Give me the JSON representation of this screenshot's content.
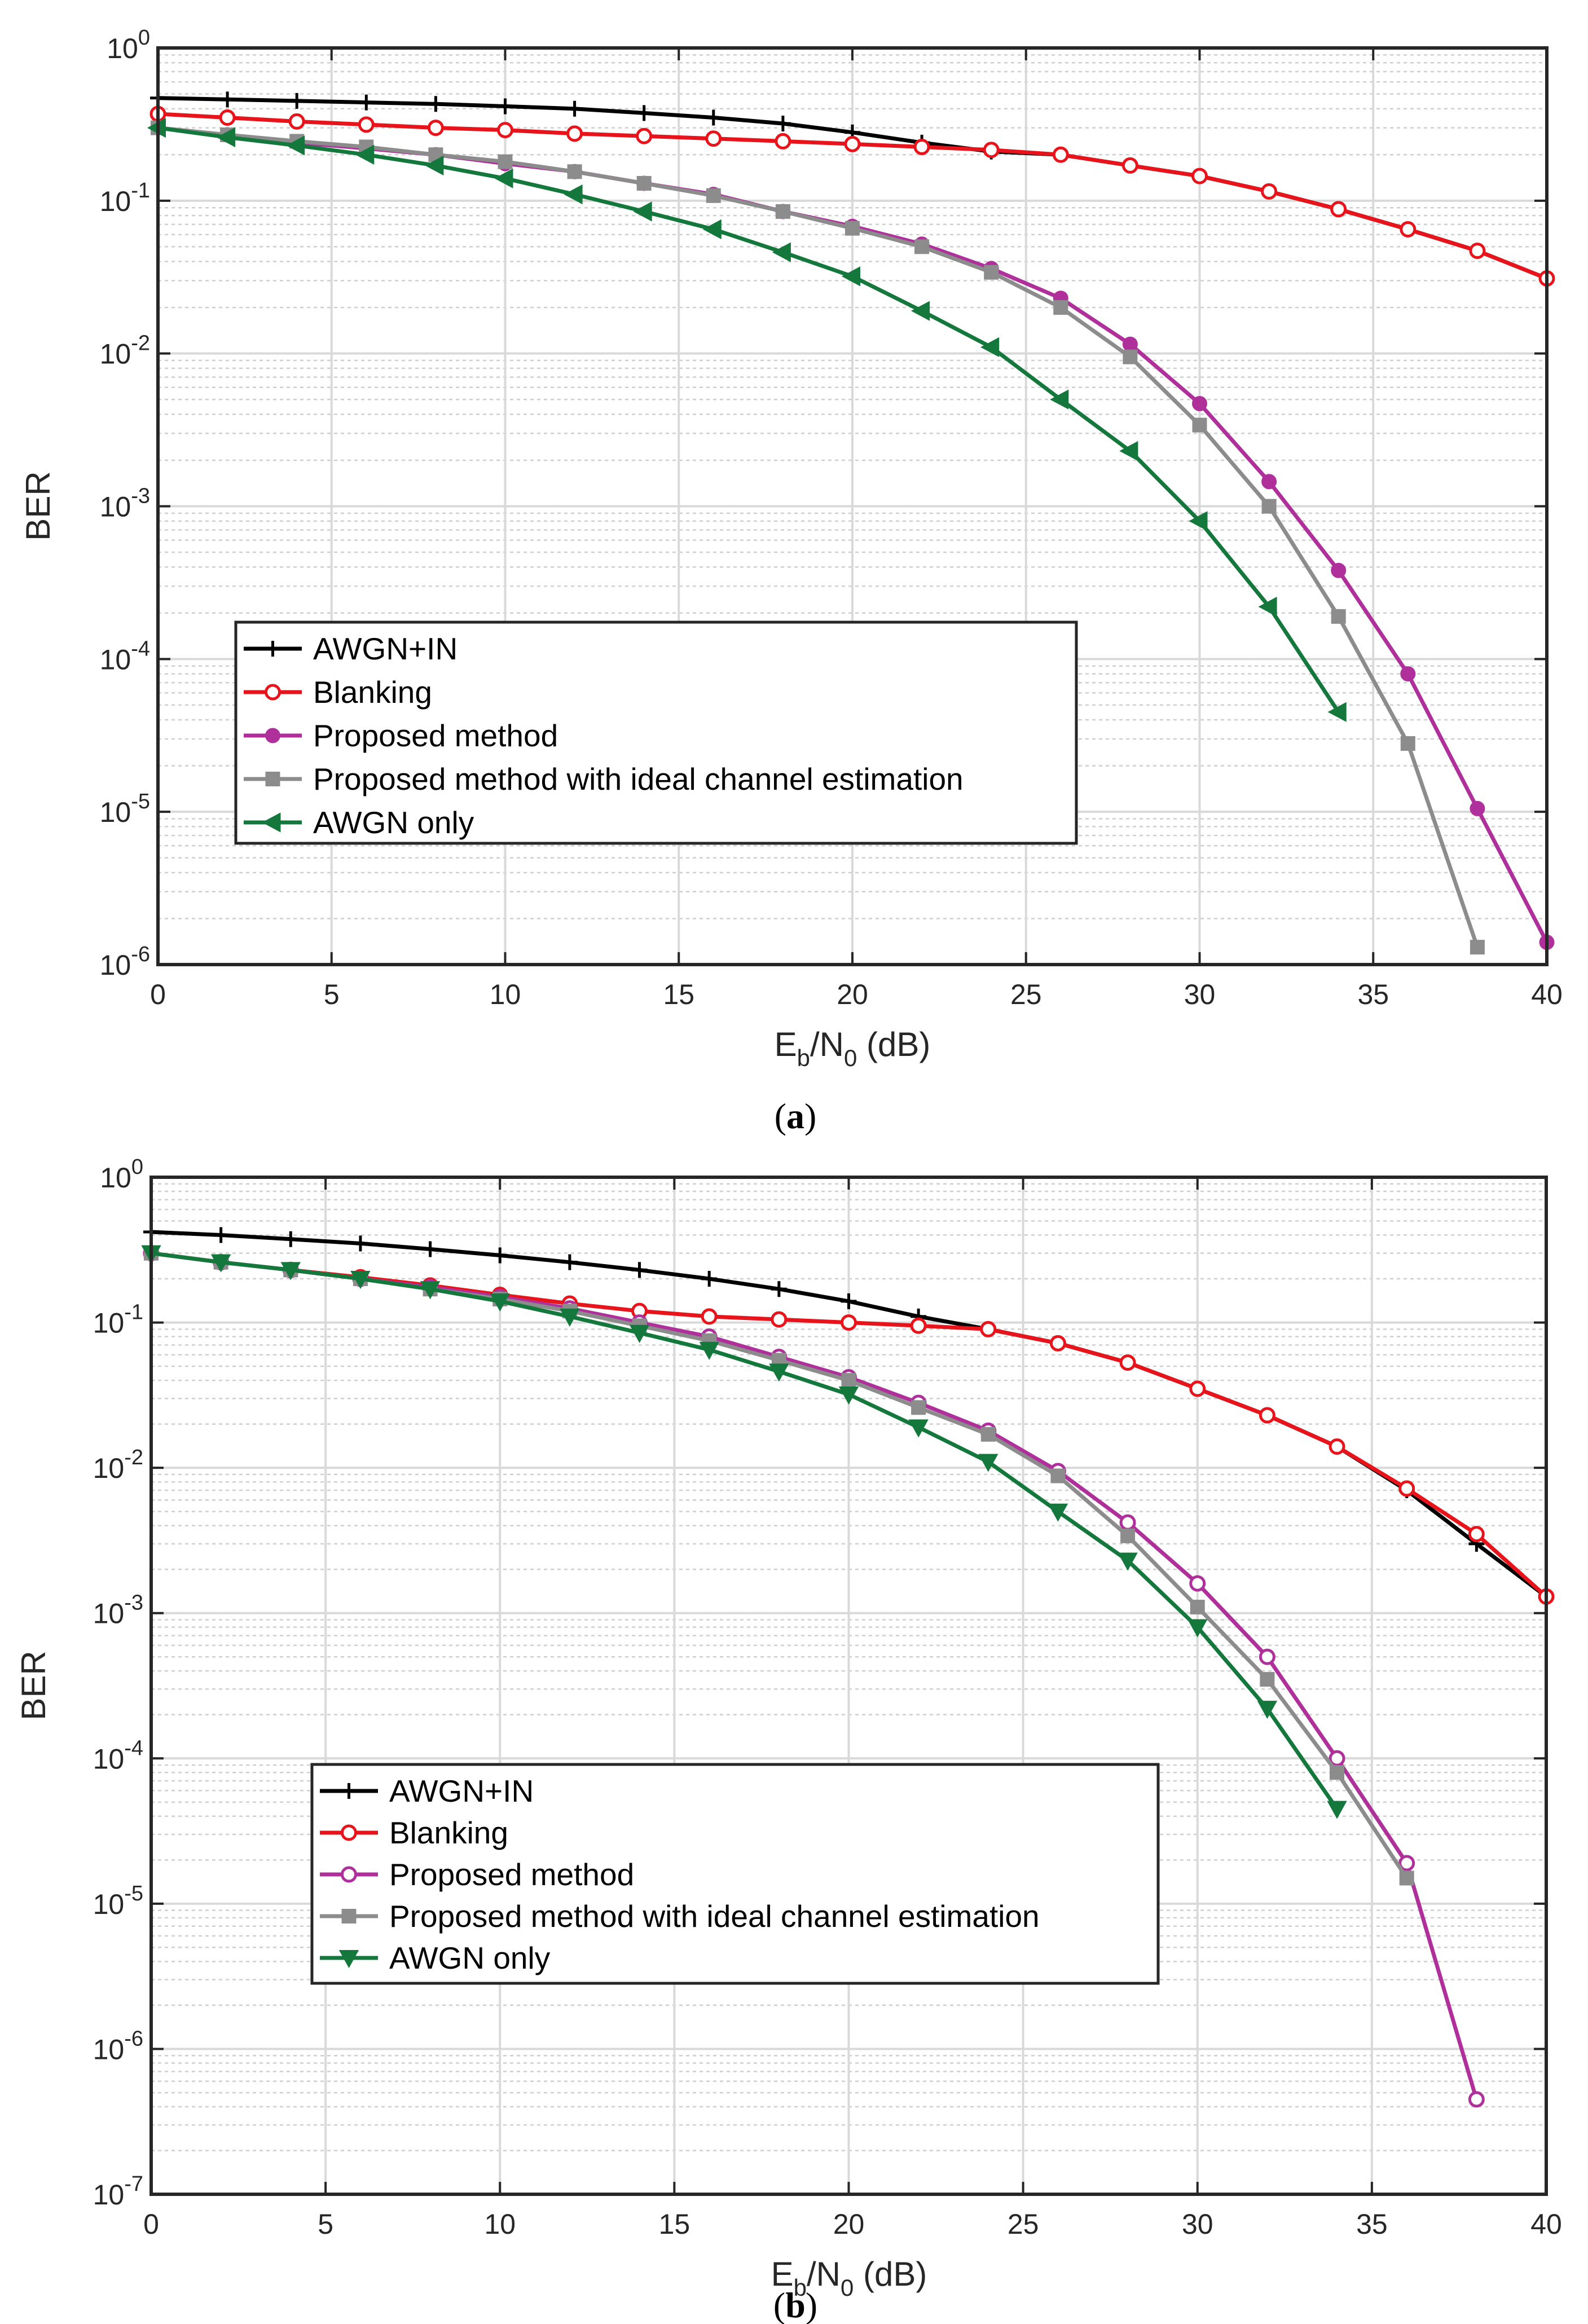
{
  "colors": {
    "awgn_in": "#000000",
    "blanking": "#e8141c",
    "proposed": "#b0309b",
    "ideal": "#8c8c8c",
    "awgn_only": "#14783c",
    "grid_major": "#d9d9d9",
    "grid_minor": "#cfcfcf",
    "axis": "#262626"
  },
  "chart_data": [
    {
      "type": "line",
      "panel_label": "a",
      "xlabel": {
        "base": "E",
        "sub1": "b",
        "mid": "/N",
        "sub2": "0",
        "unit": " (dB)"
      },
      "ylabel": "BER",
      "y_scale": "log",
      "xlim": [
        0,
        40
      ],
      "ylim": [
        1e-06,
        1
      ],
      "x_ticks": [
        "0",
        "5",
        "10",
        "15",
        "20",
        "25",
        "30",
        "35",
        "40"
      ],
      "y_ticks": [
        {
          "base": "10",
          "exp": "0"
        },
        {
          "base": "10",
          "exp": "-1"
        },
        {
          "base": "10",
          "exp": "-2"
        },
        {
          "base": "10",
          "exp": "-3"
        },
        {
          "base": "10",
          "exp": "-4"
        },
        {
          "base": "10",
          "exp": "-5"
        },
        {
          "base": "10",
          "exp": "-6"
        }
      ],
      "grid": true,
      "legend_position": "lower-left",
      "series": [
        {
          "name": "AWGN+IN",
          "color_key": "awgn_in",
          "marker": "plus",
          "x": [
            0,
            2,
            4,
            6,
            8,
            10,
            12,
            14,
            16,
            18,
            20,
            22,
            24,
            26,
            28,
            30,
            32,
            34,
            36,
            38,
            40
          ],
          "y": [
            0.47,
            0.46,
            0.45,
            0.44,
            0.43,
            0.415,
            0.4,
            0.375,
            0.35,
            0.32,
            0.28,
            0.24,
            0.21,
            0.2,
            0.17,
            0.145,
            0.115,
            0.088,
            0.065,
            0.047,
            0.031
          ]
        },
        {
          "name": "Blanking",
          "color_key": "blanking",
          "marker": "circle-open",
          "x": [
            0,
            2,
            4,
            6,
            8,
            10,
            12,
            14,
            16,
            18,
            20,
            22,
            24,
            26,
            28,
            30,
            32,
            34,
            36,
            38,
            40
          ],
          "y": [
            0.37,
            0.35,
            0.33,
            0.315,
            0.3,
            0.29,
            0.275,
            0.265,
            0.255,
            0.245,
            0.235,
            0.225,
            0.215,
            0.2,
            0.17,
            0.145,
            0.115,
            0.088,
            0.065,
            0.047,
            0.031
          ]
        },
        {
          "name": "Proposed method",
          "color_key": "proposed",
          "marker": "circle-filled",
          "x": [
            0,
            2,
            4,
            6,
            8,
            10,
            12,
            14,
            16,
            18,
            20,
            22,
            24,
            26,
            28,
            30,
            32,
            34,
            36,
            38,
            40
          ],
          "y": [
            0.3,
            0.27,
            0.24,
            0.22,
            0.2,
            0.175,
            0.155,
            0.13,
            0.11,
            0.085,
            0.068,
            0.052,
            0.036,
            0.023,
            0.0115,
            0.0047,
            0.00145,
            0.00038,
            8e-05,
            1.05e-05,
            1.4e-06
          ]
        },
        {
          "name": "Proposed method with ideal channel estimation",
          "color_key": "ideal",
          "marker": "square",
          "x": [
            0,
            2,
            4,
            6,
            8,
            10,
            12,
            14,
            16,
            18,
            20,
            22,
            24,
            26,
            28,
            30,
            32,
            34,
            36,
            38
          ],
          "y": [
            0.3,
            0.27,
            0.245,
            0.225,
            0.2,
            0.18,
            0.155,
            0.13,
            0.108,
            0.085,
            0.066,
            0.05,
            0.034,
            0.02,
            0.0095,
            0.0034,
            0.001,
            0.00019,
            2.8e-05,
            1.3e-06
          ]
        },
        {
          "name": "AWGN only",
          "color_key": "awgn_only",
          "marker": "triangle-left",
          "x": [
            0,
            2,
            4,
            6,
            8,
            10,
            12,
            14,
            16,
            18,
            20,
            22,
            24,
            26,
            28,
            30,
            32,
            34
          ],
          "y": [
            0.3,
            0.26,
            0.23,
            0.2,
            0.17,
            0.14,
            0.11,
            0.085,
            0.065,
            0.046,
            0.032,
            0.019,
            0.011,
            0.005,
            0.0023,
            0.0008,
            0.00022,
            4.5e-05
          ]
        }
      ]
    },
    {
      "type": "line",
      "panel_label": "b",
      "xlabel": {
        "base": "E",
        "sub1": "b",
        "mid": "/N",
        "sub2": "0",
        "unit": " (dB)"
      },
      "ylabel": "BER",
      "y_scale": "log",
      "xlim": [
        0,
        40
      ],
      "ylim": [
        1e-07,
        1
      ],
      "x_ticks": [
        "0",
        "5",
        "10",
        "15",
        "20",
        "25",
        "30",
        "35",
        "40"
      ],
      "y_ticks": [
        {
          "base": "10",
          "exp": "0"
        },
        {
          "base": "10",
          "exp": "-1"
        },
        {
          "base": "10",
          "exp": "-2"
        },
        {
          "base": "10",
          "exp": "-3"
        },
        {
          "base": "10",
          "exp": "-4"
        },
        {
          "base": "10",
          "exp": "-5"
        },
        {
          "base": "10",
          "exp": "-6"
        },
        {
          "base": "10",
          "exp": "-7"
        }
      ],
      "grid": true,
      "legend_position": "lower-left",
      "series": [
        {
          "name": "AWGN+IN",
          "color_key": "awgn_in",
          "marker": "plus",
          "x": [
            0,
            2,
            4,
            6,
            8,
            10,
            12,
            14,
            16,
            18,
            20,
            22,
            24,
            26,
            28,
            30,
            32,
            34,
            36,
            38,
            40
          ],
          "y": [
            0.42,
            0.4,
            0.375,
            0.35,
            0.32,
            0.29,
            0.26,
            0.23,
            0.2,
            0.17,
            0.14,
            0.11,
            0.09,
            0.072,
            0.053,
            0.035,
            0.023,
            0.014,
            0.007,
            0.003,
            0.0013
          ]
        },
        {
          "name": "Blanking",
          "color_key": "blanking",
          "marker": "circle-open",
          "x": [
            0,
            2,
            4,
            6,
            8,
            10,
            12,
            14,
            16,
            18,
            20,
            22,
            24,
            26,
            28,
            30,
            32,
            34,
            36,
            38,
            40
          ],
          "y": [
            0.3,
            0.26,
            0.23,
            0.205,
            0.18,
            0.155,
            0.135,
            0.12,
            0.11,
            0.105,
            0.1,
            0.095,
            0.09,
            0.072,
            0.053,
            0.035,
            0.023,
            0.014,
            0.0072,
            0.0035,
            0.0013
          ]
        },
        {
          "name": "Proposed method",
          "color_key": "proposed",
          "marker": "circle-open",
          "x": [
            0,
            2,
            4,
            6,
            8,
            10,
            12,
            14,
            16,
            18,
            20,
            22,
            24,
            26,
            28,
            30,
            32,
            34,
            36,
            38
          ],
          "y": [
            0.3,
            0.26,
            0.23,
            0.2,
            0.175,
            0.15,
            0.125,
            0.1,
            0.08,
            0.058,
            0.042,
            0.028,
            0.018,
            0.0095,
            0.0042,
            0.0016,
            0.0005,
            0.0001,
            1.9e-05,
            4.5e-07
          ]
        },
        {
          "name": "Proposed method with ideal channel estimation",
          "color_key": "ideal",
          "marker": "square",
          "x": [
            0,
            2,
            4,
            6,
            8,
            10,
            12,
            14,
            16,
            18,
            20,
            22,
            24,
            26,
            28,
            30,
            32,
            34,
            36
          ],
          "y": [
            0.3,
            0.26,
            0.23,
            0.2,
            0.17,
            0.145,
            0.12,
            0.095,
            0.075,
            0.055,
            0.04,
            0.026,
            0.017,
            0.0088,
            0.0034,
            0.0011,
            0.00035,
            8e-05,
            1.5e-05
          ]
        },
        {
          "name": "AWGN only",
          "color_key": "awgn_only",
          "marker": "triangle-down",
          "x": [
            0,
            2,
            4,
            6,
            8,
            10,
            12,
            14,
            16,
            18,
            20,
            22,
            24,
            26,
            28,
            30,
            32,
            34
          ],
          "y": [
            0.3,
            0.26,
            0.23,
            0.2,
            0.17,
            0.14,
            0.11,
            0.085,
            0.065,
            0.046,
            0.032,
            0.019,
            0.011,
            0.005,
            0.0023,
            0.0008,
            0.00022,
            4.5e-05
          ]
        }
      ]
    }
  ]
}
